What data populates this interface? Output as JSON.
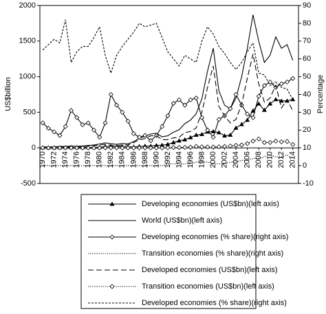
{
  "chart_data": {
    "type": "line",
    "y_label": "US$billion",
    "y2_label": "Percentage",
    "x": [
      1970,
      1971,
      1972,
      1973,
      1974,
      1975,
      1976,
      1977,
      1978,
      1979,
      1980,
      1981,
      1982,
      1983,
      1984,
      1985,
      1986,
      1987,
      1988,
      1989,
      1990,
      1991,
      1992,
      1993,
      1994,
      1995,
      1996,
      1997,
      1998,
      1999,
      2000,
      2001,
      2002,
      2003,
      2004,
      2005,
      2006,
      2007,
      2008,
      2009,
      2010,
      2011,
      2012,
      2013,
      2014
    ],
    "xlim": [
      1969.5,
      2015
    ],
    "xticks": [
      1970,
      1972,
      1974,
      1976,
      1978,
      1980,
      1982,
      1984,
      1986,
      1988,
      1990,
      1992,
      1994,
      1996,
      1998,
      2000,
      2002,
      2004,
      2006,
      2008,
      2010,
      2012,
      2014
    ],
    "ylim": [
      -500,
      2000
    ],
    "yticks": [
      -500,
      0,
      500,
      1000,
      1500,
      2000
    ],
    "y2lim": [
      -10,
      90
    ],
    "y2ticks": [
      -10,
      0,
      10,
      20,
      30,
      40,
      50,
      60,
      70,
      80,
      90
    ],
    "series": [
      {
        "name": "Developing economies (US$bn)(left axis)",
        "color": "#000000",
        "dash": "solid",
        "marker": "triangle",
        "values": [
          3,
          3,
          3,
          4,
          5,
          6,
          5,
          5,
          7,
          8,
          10,
          18,
          20,
          17,
          18,
          14,
          14,
          20,
          26,
          25,
          35,
          38,
          50,
          75,
          100,
          115,
          145,
          180,
          190,
          225,
          230,
          215,
          170,
          180,
          280,
          330,
          390,
          520,
          620,
          530,
          620,
          680,
          660,
          660,
          680
        ]
      },
      {
        "name": "World (US$bn)(left axis)",
        "color": "#000000",
        "dash": "solid",
        "marker": "none",
        "values": [
          13,
          14,
          15,
          21,
          20,
          27,
          22,
          25,
          34,
          40,
          55,
          70,
          58,
          50,
          60,
          56,
          87,
          136,
          160,
          195,
          205,
          155,
          170,
          220,
          255,
          340,
          390,
          480,
          690,
          1080,
          1400,
          800,
          600,
          550,
          700,
          1000,
          1400,
          1870,
          1500,
          1200,
          1300,
          1560,
          1400,
          1450,
          1230
        ]
      },
      {
        "name": "Developing economies (% share)(right axis)",
        "color": "#000000",
        "dash": "solid",
        "marker": "diamond",
        "axis": "y2",
        "values": [
          24,
          21,
          19,
          17,
          22,
          31,
          27,
          23,
          24,
          20,
          16,
          24,
          40,
          34,
          30,
          25,
          18,
          16,
          17,
          14,
          17,
          22,
          28,
          35,
          37,
          34,
          37,
          38,
          27,
          20,
          16,
          26,
          28,
          32,
          40,
          34,
          29,
          27,
          39,
          45,
          47,
          44,
          46,
          47,
          49
        ]
      },
      {
        "name": "Transition economies (% share)(right axis)",
        "color": "#000000",
        "dash": "dotted",
        "marker": "none",
        "axis": "y2",
        "values": [
          0,
          0,
          0,
          0,
          0,
          0,
          0,
          0,
          0,
          0,
          0,
          0,
          0,
          0,
          0,
          0,
          0,
          0,
          0,
          0,
          0,
          0,
          1,
          1,
          1,
          1,
          1,
          2,
          2,
          2,
          1,
          1,
          1,
          2,
          2,
          3,
          3,
          4,
          4,
          5,
          6,
          5,
          5,
          6,
          4
        ]
      },
      {
        "name": "Developed economies (US$bn)(left axis)",
        "color": "#000000",
        "dash": "dashed",
        "marker": "none",
        "values": [
          10,
          11,
          12,
          17,
          15,
          20,
          16,
          19,
          26,
          30,
          41,
          50,
          35,
          30,
          40,
          40,
          75,
          115,
          130,
          170,
          170,
          115,
          115,
          140,
          150,
          215,
          230,
          280,
          500,
          850,
          1150,
          580,
          450,
          350,
          400,
          610,
          980,
          1320,
          900,
          640,
          700,
          880,
          560,
          680,
          520
        ]
      },
      {
        "name": "Transition economies (US$bn)(left axis)",
        "color": "#000000",
        "dash": "dotted",
        "marker": "diamond",
        "values": [
          0,
          0,
          0,
          0,
          0,
          0,
          0,
          0,
          0,
          0,
          0,
          0,
          0,
          0,
          0,
          0,
          0,
          0,
          0,
          0,
          0,
          0,
          2,
          5,
          6,
          6,
          10,
          20,
          15,
          12,
          12,
          15,
          20,
          26,
          35,
          40,
          60,
          95,
          125,
          75,
          75,
          95,
          85,
          90,
          48
        ]
      },
      {
        "name": "Developed economies (% share)(right axis)",
        "color": "#000000",
        "dash": "shortdash",
        "marker": "none",
        "axis": "y2",
        "values": [
          65,
          68,
          71,
          69,
          82,
          58,
          64,
          67,
          67,
          72,
          78,
          62,
          52,
          62,
          67,
          71,
          75,
          80,
          78,
          79,
          80,
          72,
          64,
          60,
          56,
          62,
          60,
          58,
          70,
          78,
          74,
          67,
          63,
          58,
          54,
          58,
          64,
          69,
          52,
          51,
          45,
          47,
          44,
          43,
          37
        ]
      }
    ]
  }
}
